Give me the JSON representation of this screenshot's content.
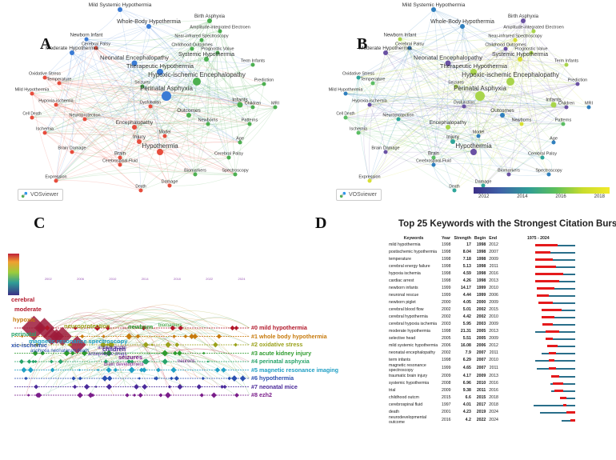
{
  "panels": {
    "a": "A",
    "b": "B",
    "c": "C",
    "d": "D"
  },
  "vosviewer": "VOSviewer",
  "network_terms": [
    "Mild Systemic Hypothermia",
    "Birth Asphyxia",
    "Amplitude-integrated Electroen",
    "Whole-Body Hypothermia",
    "Newborn Infant",
    "Near-infrared Spectroscopy",
    "Childhood Outcomes",
    "Cerebral Palsy",
    "Prognostic Value",
    "Moderate Hypothermia",
    "Neonatal Encephalopathy",
    "Systemic Hypothermia",
    "Therapeutic Hypothermia",
    "Hypoxic-ischemic Encephalopathy",
    "Oxidative Stress",
    "Temperature",
    "Seizures",
    "Prediction",
    "Term Infants",
    "Mild Hypothermia",
    "Hypoxia-ischemia",
    "Perinatal Asphyxia",
    "Infants",
    "Children",
    "MRI",
    "Cell Death",
    "Dysfunction",
    "Outcomes",
    "Neuroprotection",
    "Newborns",
    "Patterns",
    "Ischemia",
    "Encephalopathy",
    "Injury",
    "Model",
    "Brain Damage",
    "Hypothermia",
    "Age",
    "Cerebral Palsy",
    "Spectroscopy",
    "Brain",
    "Biomarkers",
    "Cerebrospinal-Fluid",
    "Expression",
    "Damage",
    "Death"
  ],
  "colorbar_ticks": [
    "2012",
    "2014",
    "2016",
    "2018"
  ],
  "citespace": {
    "timeline_years": [
      "1998",
      "2002",
      "2006",
      "2010",
      "2014",
      "2018",
      "2022",
      "2024"
    ],
    "clusters": [
      {
        "label": "#0 mild hypothermia",
        "color": "#b2182b"
      },
      {
        "label": "#1 whole body hypothermia",
        "color": "#c77a0c"
      },
      {
        "label": "#2 oxidative stress",
        "color": "#9aa11a"
      },
      {
        "label": "#3 acute kidney injury",
        "color": "#2e9b2e"
      },
      {
        "label": "#4 perinatal asphyxia",
        "color": "#28a36a"
      },
      {
        "label": "#5 magnetic resonance imaging",
        "color": "#1f9fc4"
      },
      {
        "label": "#6 hypothermia",
        "color": "#2a4fb0"
      },
      {
        "label": "#7 neonatal mice",
        "color": "#4b2a9a"
      },
      {
        "label": "#8 ezh2",
        "color": "#7a1d8a"
      }
    ],
    "node_labels": [
      {
        "t": "cerebral",
        "c": "#b2182b"
      },
      {
        "t": "moderate",
        "c": "#b2182b"
      },
      {
        "t": "hypoxic",
        "c": "#c77a0c"
      },
      {
        "t": "neuroprotection",
        "c": "#9aa11a"
      },
      {
        "t": "newborn",
        "c": "#2e9b2e"
      },
      {
        "t": "biomarkers",
        "c": "#2e9b2e"
      },
      {
        "t": "perinatal",
        "c": "#28a36a"
      },
      {
        "t": "magnetic resonance spectroscopy",
        "c": "#1f9fc4"
      },
      {
        "t": "xic-ischemic",
        "c": "#2a4fb0"
      },
      {
        "t": "asphyxia neonatorum",
        "c": "#2a4fb0"
      },
      {
        "t": "death",
        "c": "#2a4fb0"
      },
      {
        "t": "children",
        "c": "#4b2a9a"
      },
      {
        "t": "seizures",
        "c": "#7a1d8a"
      },
      {
        "t": "brain development",
        "c": "#7a1d8a"
      },
      {
        "t": "neurons",
        "c": "#7a1d8a"
      },
      {
        "t": "antiepileptic drugs",
        "c": "#4b2a9a"
      },
      {
        "t": "animal model",
        "c": "#4b2a9a"
      }
    ]
  },
  "bursts": {
    "title": "Top 25 Keywords with the Strongest Citation Bursts",
    "headers": {
      "keywords": "Keywords",
      "year": "Year",
      "strength": "Strength",
      "begin": "Begin",
      "end": "End",
      "range": "1975 - 2024"
    },
    "range_start": 1975,
    "range_end": 2024,
    "rows": [
      {
        "kw": "mild hypothermia",
        "year": "1998",
        "strength": "17",
        "begin": "1998",
        "end": "2012"
      },
      {
        "kw": "postischemic hypothermia",
        "year": "1998",
        "strength": "8.04",
        "begin": "1998",
        "end": "2007"
      },
      {
        "kw": "temperature",
        "year": "1998",
        "strength": "7.18",
        "begin": "1998",
        "end": "2009"
      },
      {
        "kw": "cerebral energy failure",
        "year": "1998",
        "strength": "5.13",
        "begin": "1998",
        "end": "2011"
      },
      {
        "kw": "hypoxia ischemia",
        "year": "1998",
        "strength": "4.59",
        "begin": "1998",
        "end": "2016"
      },
      {
        "kw": "cardiac arrest",
        "year": "1998",
        "strength": "4.26",
        "begin": "1998",
        "end": "2013"
      },
      {
        "kw": "newborn infants",
        "year": "1999",
        "strength": "14.17",
        "begin": "1999",
        "end": "2010"
      },
      {
        "kw": "neuronal rescue",
        "year": "1999",
        "strength": "4.44",
        "begin": "1999",
        "end": "2006"
      },
      {
        "kw": "newborn piglet",
        "year": "2000",
        "strength": "4.05",
        "begin": "2000",
        "end": "2009"
      },
      {
        "kw": "cerebral blood flow",
        "year": "2002",
        "strength": "5.01",
        "begin": "2002",
        "end": "2015"
      },
      {
        "kw": "cerebral hypothermia",
        "year": "2002",
        "strength": "4.42",
        "begin": "2002",
        "end": "2010"
      },
      {
        "kw": "cerebral hypoxia ischemia",
        "year": "2003",
        "strength": "5.95",
        "begin": "2003",
        "end": "2009"
      },
      {
        "kw": "moderate hypothermia",
        "year": "1998",
        "strength": "21.31",
        "begin": "2005",
        "end": "2013"
      },
      {
        "kw": "selective head",
        "year": "2005",
        "strength": "5.51",
        "begin": "2005",
        "end": "2009"
      },
      {
        "kw": "mild systemic hypothermia",
        "year": "2006",
        "strength": "16.08",
        "begin": "2006",
        "end": "2012"
      },
      {
        "kw": "neonatal encephalopathy",
        "year": "2002",
        "strength": "7.9",
        "begin": "2007",
        "end": "2011"
      },
      {
        "kw": "term infants",
        "year": "1998",
        "strength": "6.29",
        "begin": "2007",
        "end": "2010"
      },
      {
        "kw": "magnetic resonance spectroscopy",
        "year": "1999",
        "strength": "4.65",
        "begin": "2007",
        "end": "2011"
      },
      {
        "kw": "traumatic brain injury",
        "year": "2009",
        "strength": "4.17",
        "begin": "2009",
        "end": "2013"
      },
      {
        "kw": "systemic hypothermia",
        "year": "2008",
        "strength": "6.96",
        "begin": "2010",
        "end": "2016"
      },
      {
        "kw": "trial",
        "year": "2009",
        "strength": "9.38",
        "begin": "2011",
        "end": "2016"
      },
      {
        "kw": "childhood outcm",
        "year": "2015",
        "strength": "6.6",
        "begin": "2015",
        "end": "2018"
      },
      {
        "kw": "cerebrospinal fluid",
        "year": "1997",
        "strength": "4.01",
        "begin": "2017",
        "end": "2018"
      },
      {
        "kw": "death",
        "year": "2001",
        "strength": "4.23",
        "begin": "2019",
        "end": "2024"
      },
      {
        "kw": "neurodevelopmental outcome",
        "year": "2016",
        "strength": "4.2",
        "begin": "2022",
        "end": "2024"
      }
    ]
  }
}
